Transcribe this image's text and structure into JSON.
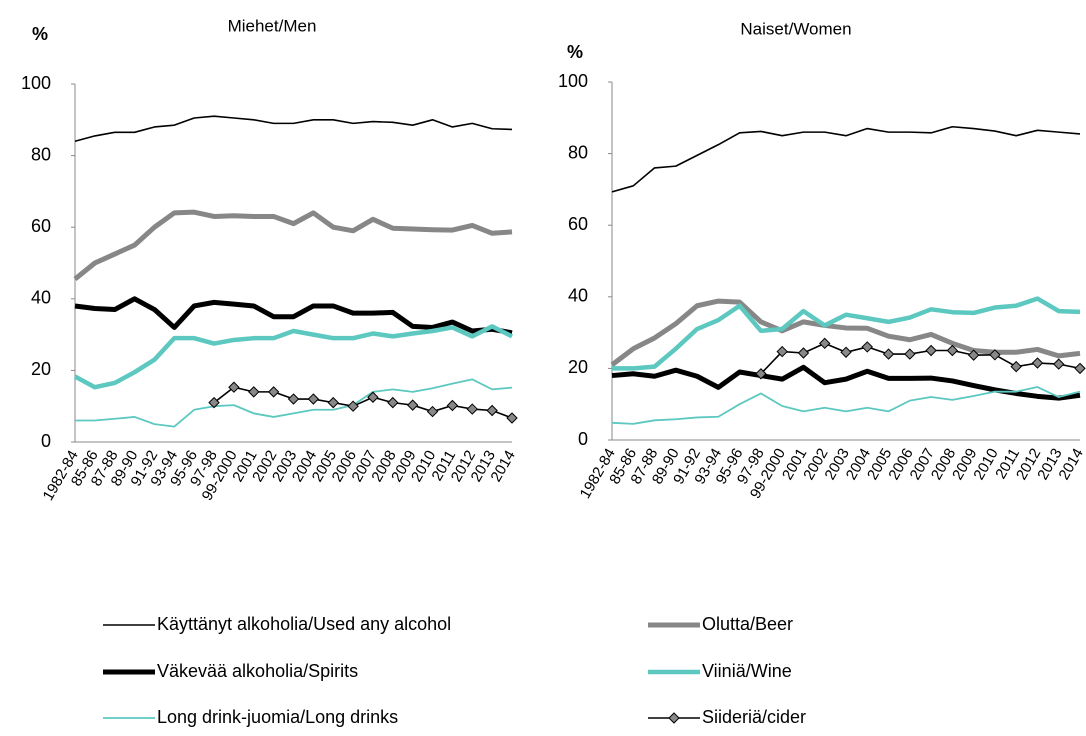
{
  "chart_data": [
    {
      "type": "line",
      "title": "Miehet/Men",
      "ylabel": "%",
      "categories": [
        "1982-84",
        "85-86",
        "87-88",
        "89-90",
        "91-92",
        "93-94",
        "95-96",
        "97-98",
        "99-2000",
        "2001",
        "2002",
        "2003",
        "2004",
        "2005",
        "2006",
        "2007",
        "2008",
        "2009",
        "2010",
        "2011",
        "2012",
        "2013",
        "2014"
      ],
      "ylim": [
        0,
        100
      ],
      "yticks": [
        0,
        20,
        40,
        60,
        80,
        100
      ],
      "series": [
        {
          "name": "Käyttänyt alkoholia/Used any alcohol",
          "color": "#000000",
          "values": [
            84,
            85.5,
            86.5,
            86.5,
            88,
            88.5,
            90.5,
            91,
            90.5,
            90,
            89,
            89,
            90,
            90,
            89,
            89.5,
            89.3,
            88.5,
            90,
            88,
            89,
            87.5,
            87.3
          ]
        },
        {
          "name": "Olutta/Beer",
          "color": "#878787",
          "values": [
            45.5,
            50,
            52.5,
            55,
            60,
            64,
            64.2,
            63,
            63.2,
            63,
            63,
            61,
            64,
            60,
            59,
            62.2,
            59.7,
            59.5,
            59.3,
            59.2,
            60.5,
            58.3,
            58.7
          ]
        },
        {
          "name": "Väkevää alkoholia/Spirits",
          "color": "#000000",
          "values": [
            38,
            37.3,
            37,
            40,
            37,
            32,
            38,
            39,
            38.5,
            38,
            35,
            35,
            38,
            38,
            36,
            36,
            36.2,
            32.3,
            32,
            33.5,
            31,
            31.5,
            30.5
          ]
        },
        {
          "name": "Viiniä/Wine",
          "color": "#5cc8c0",
          "values": [
            18.3,
            15.3,
            16.5,
            19.5,
            23,
            29,
            29,
            27.5,
            28.5,
            29,
            29,
            31,
            30,
            29,
            29,
            30.3,
            29.5,
            30.3,
            31,
            32,
            29.5,
            32.3,
            29.5
          ]
        },
        {
          "name": "Long drink-juomia/Long drinks",
          "color": "#5cc8c0",
          "values": [
            6,
            6,
            6.5,
            7,
            5,
            4.3,
            9,
            10,
            10.3,
            8,
            7,
            8,
            9,
            9,
            10.3,
            14,
            14.7,
            14,
            15,
            16.3,
            17.5,
            14.7,
            15.2
          ]
        },
        {
          "name": "Siideriä/cider",
          "color": "#000000",
          "marker": "diamond",
          "values": [
            null,
            null,
            null,
            null,
            null,
            null,
            null,
            11,
            15.3,
            14,
            14,
            12,
            12,
            11,
            10,
            12.5,
            11,
            10.3,
            8.5,
            10.2,
            9.2,
            8.8,
            6.7
          ]
        }
      ]
    },
    {
      "type": "line",
      "title": "Naiset/Women",
      "ylabel": "%",
      "categories": [
        "1982-84",
        "85-86",
        "87-88",
        "89-90",
        "91-92",
        "93-94",
        "95-96",
        "97-98",
        "99-2000",
        "2001",
        "2002",
        "2003",
        "2004",
        "2005",
        "2006",
        "2007",
        "2008",
        "2009",
        "2010",
        "2011",
        "2012",
        "2013",
        "2014"
      ],
      "ylim": [
        0,
        100
      ],
      "yticks": [
        0,
        20,
        40,
        60,
        80,
        100
      ],
      "series": [
        {
          "name": "Käyttänyt alkoholia/Used any alcohol",
          "color": "#000000",
          "values": [
            69.3,
            71,
            76,
            76.5,
            79.5,
            82.5,
            85.8,
            86.2,
            85,
            86,
            86,
            85,
            87,
            86,
            86,
            85.8,
            87.5,
            87,
            86.3,
            85,
            86.5,
            86,
            85.5
          ]
        },
        {
          "name": "Olutta/Beer",
          "color": "#878787",
          "values": [
            21,
            25.5,
            28.5,
            32.5,
            37.5,
            38.8,
            38.5,
            33,
            30.5,
            33,
            32,
            31.3,
            31.2,
            29,
            28,
            29.5,
            27,
            25,
            24.5,
            24.5,
            25.3,
            23.5,
            24.2
          ]
        },
        {
          "name": "Väkevää alkoholia/Spirits",
          "color": "#000000",
          "values": [
            18,
            18.5,
            17.8,
            19.5,
            17.8,
            14.7,
            19,
            18,
            17,
            20.3,
            16,
            17,
            19.2,
            17.2,
            17.2,
            17.3,
            16.5,
            15.2,
            14,
            13,
            12.2,
            11.7,
            12.5
          ]
        },
        {
          "name": "Viiniä/Wine",
          "color": "#5cc8c0",
          "values": [
            20,
            20,
            20.5,
            25.5,
            31,
            33.5,
            37.5,
            30.5,
            31,
            36,
            32,
            35,
            34,
            33,
            34.2,
            36.5,
            35.7,
            35.5,
            37,
            37.5,
            39.5,
            36,
            35.8
          ]
        },
        {
          "name": "Long drink-juomia/Long drinks",
          "color": "#5cc8c0",
          "values": [
            4.8,
            4.5,
            5.5,
            5.8,
            6.3,
            6.5,
            10,
            13,
            9.5,
            8,
            9,
            8,
            9,
            8,
            11,
            12,
            11.2,
            12.3,
            13.5,
            13.5,
            14.8,
            12,
            13.5
          ]
        },
        {
          "name": "Siideriä/cider",
          "color": "#000000",
          "marker": "diamond",
          "values": [
            null,
            null,
            null,
            null,
            null,
            null,
            null,
            18.5,
            24.7,
            24.3,
            27,
            24.5,
            26,
            24,
            24,
            25,
            25,
            23.7,
            23.8,
            20.5,
            21.5,
            21.2,
            20
          ]
        }
      ]
    }
  ]
}
